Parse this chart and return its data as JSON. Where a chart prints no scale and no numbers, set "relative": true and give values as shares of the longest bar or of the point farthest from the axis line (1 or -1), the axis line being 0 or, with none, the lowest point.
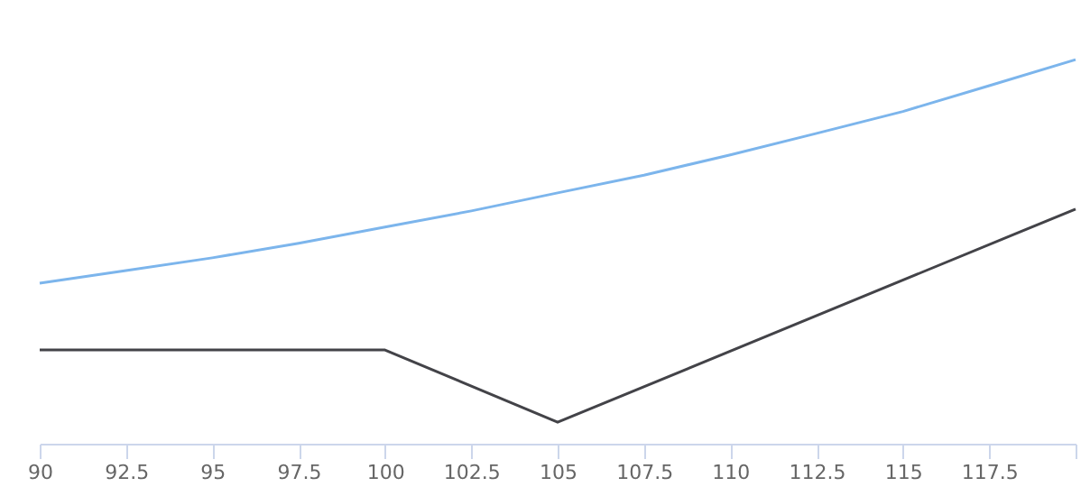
{
  "chart_data": {
    "type": "line",
    "relative": true,
    "x": [
      90,
      92.5,
      95,
      97.5,
      100,
      102.5,
      105,
      107.5,
      110,
      112.5,
      115,
      117.5,
      120
    ],
    "series": [
      {
        "color": "#7cb5ec",
        "values": [
          0.418,
          0.451,
          0.484,
          0.522,
          0.564,
          0.606,
          0.653,
          0.699,
          0.752,
          0.808,
          0.865,
          0.932,
          1
        ]
      },
      {
        "color": "#434348",
        "x": [
          90,
          100,
          105,
          120
        ],
        "values": [
          0.244,
          0.244,
          0.056,
          0.611
        ]
      }
    ],
    "xlim": [
      90,
      120
    ],
    "xticks": [
      90,
      92.5,
      95,
      97.5,
      100,
      102.5,
      105,
      107.5,
      110,
      112.5,
      115,
      117.5,
      {
        "value": 120,
        "label": null
      }
    ],
    "marker": "none",
    "line_style": "solid"
  }
}
